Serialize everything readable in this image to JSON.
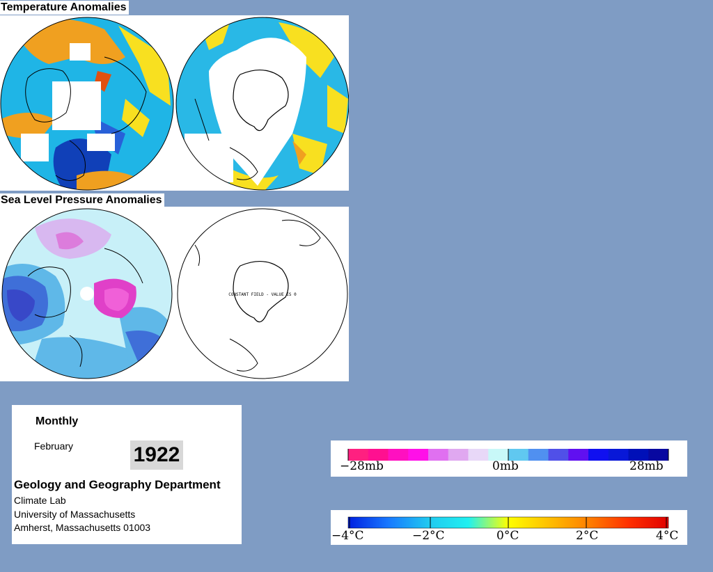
{
  "temperature_section": {
    "title": "Temperature Anomalies",
    "maps": [
      {
        "name": "northern-hemisphere",
        "colors": [
          "#1fb5e6",
          "#f0a020",
          "#f8e020",
          "#2860d8",
          "#1040b8",
          "#e05010",
          "#4fd8e8"
        ]
      },
      {
        "name": "southern-hemisphere",
        "colors": [
          "#29b8e6",
          "#f8e020",
          "#f0a020",
          "#50d8e8"
        ]
      }
    ]
  },
  "pressure_section": {
    "title": "Sea Level Pressure Anomalies",
    "maps": [
      {
        "name": "northern-hemisphere",
        "colors": [
          "#c8f0f8",
          "#5fb8e8",
          "#3f6fd8",
          "#3848c8",
          "#e040c8",
          "#d8b8f0",
          "#ffffff"
        ]
      },
      {
        "name": "southern-hemisphere",
        "annotation": "CONSTANT FIELD - VALUE IS 0"
      }
    ]
  },
  "info": {
    "period": "Monthly",
    "month": "February",
    "year": "1922",
    "department": "Geology and Geography Department",
    "lab": "Climate Lab",
    "university": "University of Massachusetts",
    "address": "Amherst, Massachusetts 01003"
  },
  "pressure_legend": {
    "labels": [
      "−28mb",
      "0mb",
      "28mb"
    ],
    "colors": [
      "#ff2080",
      "#ff1090",
      "#ff10c0",
      "#ff10e8",
      "#e070f0",
      "#e0a8f0",
      "#e8d8f8",
      "#c8f8f8",
      "#60c8f0",
      "#5090f0",
      "#5050e8",
      "#6010f0",
      "#1010f0",
      "#0818d8",
      "#0010b8",
      "#0808a0"
    ]
  },
  "temperature_legend": {
    "labels": [
      "−4°C",
      "−2°C",
      "0°C",
      "2°C",
      "4°C"
    ],
    "gradient": [
      "#0020e0",
      "#1878ff",
      "#20c8f0",
      "#20f0f0",
      "#ffff00",
      "#ffc000",
      "#ff8000",
      "#ff3000",
      "#e00000"
    ]
  }
}
